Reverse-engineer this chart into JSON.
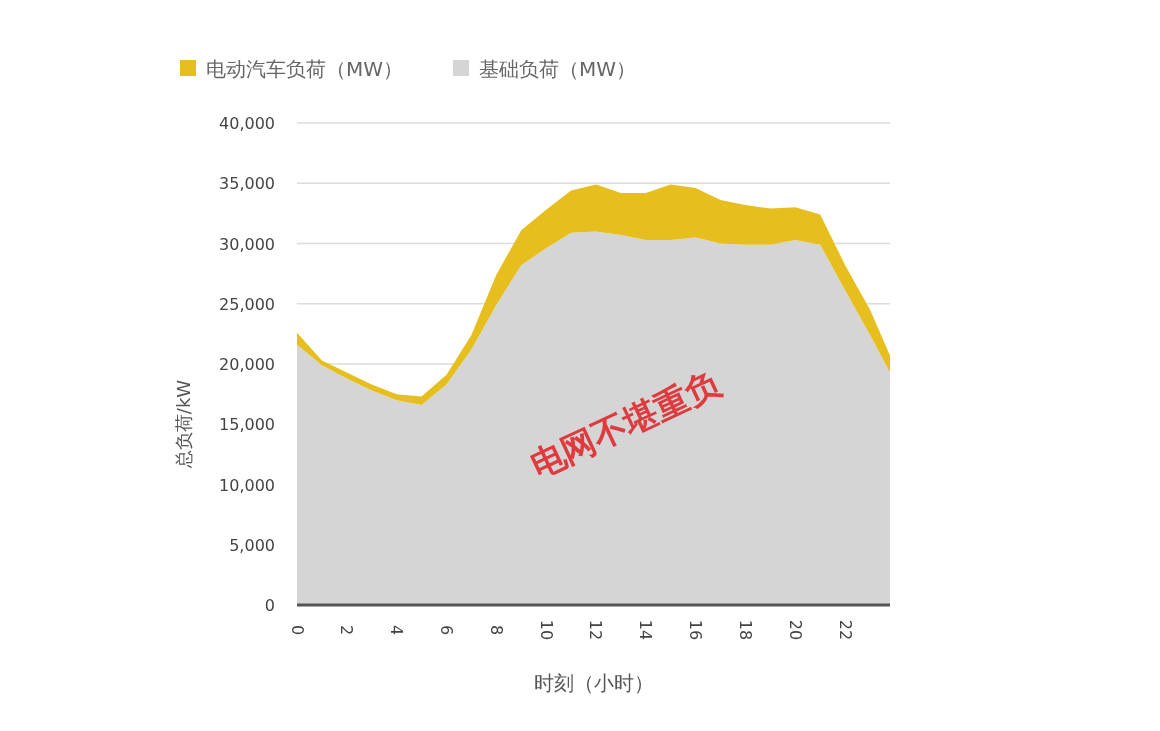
{
  "chart_data": {
    "type": "area",
    "stacked": true,
    "xlabel": "时刻（小时）",
    "ylabel": "总负荷/kW",
    "x": [
      0,
      1,
      2,
      3,
      4,
      5,
      6,
      7,
      8,
      9,
      10,
      11,
      12,
      13,
      14,
      15,
      16,
      17,
      18,
      19,
      20,
      21,
      22,
      23,
      23.8
    ],
    "series": [
      {
        "name": "基础负荷（MW）",
        "color": "#d5d5d5",
        "values": [
          21600,
          19900,
          18800,
          17800,
          17000,
          16600,
          18300,
          21200,
          24900,
          28200,
          29600,
          30900,
          31000,
          30700,
          30300,
          30300,
          30500,
          30000,
          29900,
          29900,
          30300,
          29900,
          26100,
          22400,
          19300
        ]
      },
      {
        "name": "电动汽车负荷（MW）",
        "color": "#e6be1e",
        "values": [
          1000,
          400,
          500,
          500,
          500,
          700,
          800,
          1200,
          2500,
          2900,
          3200,
          3500,
          3900,
          3500,
          3900,
          4600,
          4100,
          3600,
          3300,
          3000,
          2700,
          2500,
          2100,
          2100,
          1400
        ]
      }
    ],
    "xlim": [
      0,
      23.8
    ],
    "xticks": [
      0,
      2,
      4,
      6,
      8,
      10,
      12,
      14,
      16,
      18,
      20,
      22
    ],
    "ylim": [
      0,
      40000
    ],
    "yticks": [
      {
        "value": 0,
        "label": "0"
      },
      {
        "value": 5000,
        "label": "5,000"
      },
      {
        "value": 10000,
        "label": "10,000"
      },
      {
        "value": 15000,
        "label": "15,000"
      },
      {
        "value": 20000,
        "label": "20,000"
      },
      {
        "value": 25000,
        "label": "25,000"
      },
      {
        "value": 30000,
        "label": "30,000"
      },
      {
        "value": 35000,
        "label": "35,000"
      },
      {
        "value": 40000,
        "label": "40,000"
      }
    ],
    "grid": "y",
    "legend": "top left",
    "annotations": [
      "电网不堪重负"
    ]
  }
}
